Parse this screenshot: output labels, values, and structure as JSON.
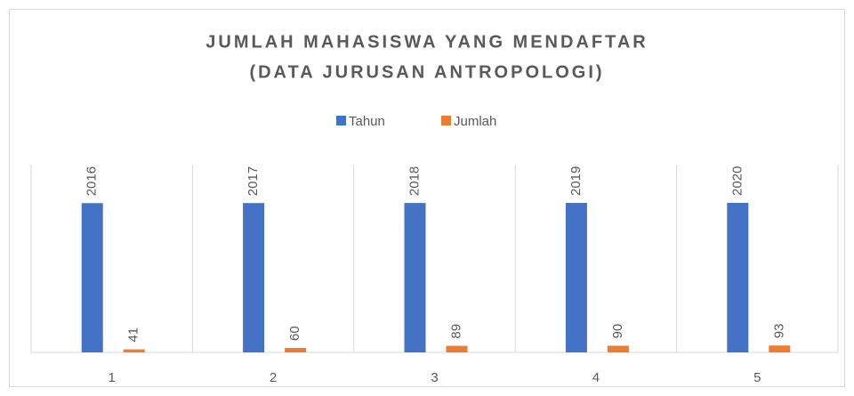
{
  "chart_data": {
    "type": "bar",
    "title": [
      "JUMLAH MAHASISWA YANG MENDAFTAR",
      "(DATA JURUSAN ANTROPOLOGI)"
    ],
    "categories": [
      "1",
      "2",
      "3",
      "4",
      "5"
    ],
    "series": [
      {
        "name": "Tahun",
        "color": "#4472c4",
        "values": [
          2016,
          2017,
          2018,
          2019,
          2020
        ]
      },
      {
        "name": "Jumlah",
        "color": "#ed7d31",
        "values": [
          41,
          60,
          89,
          90,
          93
        ]
      }
    ],
    "ylim": [
      0,
      2500
    ],
    "legend": "top"
  }
}
